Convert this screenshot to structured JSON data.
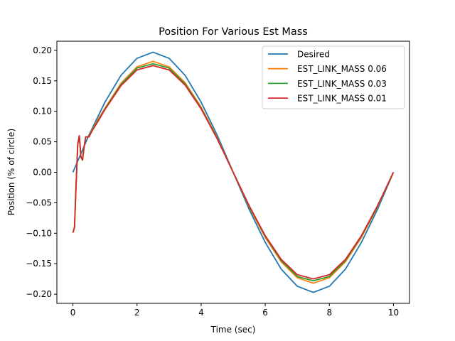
{
  "chart_data": {
    "type": "line",
    "title": "Position For Various Est Mass",
    "xlabel": "Time (sec)",
    "ylabel": "Position (% of circle)",
    "xlim": [
      -0.5,
      10.5
    ],
    "ylim": [
      -0.215,
      0.215
    ],
    "xticks": [
      0,
      2,
      4,
      6,
      8,
      10
    ],
    "xtick_labels": [
      "0",
      "2",
      "4",
      "6",
      "8",
      "10"
    ],
    "yticks": [
      -0.2,
      -0.15,
      -0.1,
      -0.05,
      0.0,
      0.05,
      0.1,
      0.15,
      0.2
    ],
    "ytick_labels": [
      "−0.20",
      "−0.15",
      "−0.10",
      "−0.05",
      "0.00",
      "0.05",
      "0.10",
      "0.15",
      "0.20"
    ],
    "grid": false,
    "legend_position": "upper right",
    "series": [
      {
        "name": "Desired",
        "color": "#1f77b4",
        "x": [
          0,
          0.5,
          1,
          1.5,
          2,
          2.5,
          3,
          3.5,
          4,
          4.5,
          5,
          5.5,
          6,
          6.5,
          7,
          7.5,
          8,
          8.5,
          9,
          9.5,
          10
        ],
        "y": [
          0,
          0.061,
          0.115,
          0.159,
          0.187,
          0.197,
          0.187,
          0.159,
          0.115,
          0.061,
          0,
          -0.061,
          -0.115,
          -0.159,
          -0.187,
          -0.197,
          -0.187,
          -0.159,
          -0.115,
          -0.061,
          0
        ]
      },
      {
        "name": "EST_LINK_MASS 0.06",
        "color": "#ff7f0e",
        "x": [
          0,
          0.05,
          0.1,
          0.15,
          0.2,
          0.25,
          0.3,
          0.35,
          0.4,
          0.45,
          0.5,
          0.6,
          0.8,
          1,
          1.5,
          2,
          2.5,
          3,
          3.5,
          4,
          4.5,
          5,
          5.5,
          6,
          6.5,
          7,
          7.5,
          8,
          8.5,
          9,
          9.5,
          10
        ],
        "y": [
          -0.099,
          -0.09,
          -0.02,
          0.045,
          0.06,
          0.025,
          0.02,
          0.042,
          0.058,
          0.058,
          0.058,
          0.07,
          0.088,
          0.105,
          0.146,
          0.173,
          0.182,
          0.173,
          0.147,
          0.107,
          0.057,
          0,
          -0.057,
          -0.107,
          -0.147,
          -0.173,
          -0.182,
          -0.173,
          -0.147,
          -0.107,
          -0.057,
          0
        ]
      },
      {
        "name": "EST_LINK_MASS 0.03",
        "color": "#2ca02c",
        "x": [
          0,
          0.05,
          0.1,
          0.15,
          0.2,
          0.25,
          0.3,
          0.35,
          0.4,
          0.45,
          0.5,
          0.6,
          0.8,
          1,
          1.5,
          2,
          2.5,
          3,
          3.5,
          4,
          4.5,
          5,
          5.5,
          6,
          6.5,
          7,
          7.5,
          8,
          8.5,
          9,
          9.5,
          10
        ],
        "y": [
          -0.099,
          -0.09,
          -0.02,
          0.045,
          0.06,
          0.025,
          0.02,
          0.042,
          0.058,
          0.058,
          0.058,
          0.069,
          0.086,
          0.104,
          0.144,
          0.171,
          0.178,
          0.171,
          0.145,
          0.105,
          0.056,
          0,
          -0.056,
          -0.105,
          -0.145,
          -0.171,
          -0.178,
          -0.171,
          -0.145,
          -0.105,
          -0.056,
          0
        ]
      },
      {
        "name": "EST_LINK_MASS 0.01",
        "color": "#d62728",
        "x": [
          0,
          0.05,
          0.1,
          0.15,
          0.2,
          0.25,
          0.3,
          0.35,
          0.4,
          0.45,
          0.5,
          0.6,
          0.8,
          1,
          1.5,
          2,
          2.5,
          3,
          3.5,
          4,
          4.5,
          5,
          5.5,
          6,
          6.5,
          7,
          7.5,
          8,
          8.5,
          9,
          9.5,
          10
        ],
        "y": [
          -0.099,
          -0.09,
          -0.02,
          0.045,
          0.06,
          0.025,
          0.02,
          0.042,
          0.058,
          0.058,
          0.058,
          0.068,
          0.085,
          0.103,
          0.142,
          0.168,
          0.175,
          0.168,
          0.143,
          0.104,
          0.055,
          0,
          -0.055,
          -0.104,
          -0.143,
          -0.168,
          -0.175,
          -0.168,
          -0.143,
          -0.104,
          -0.055,
          0
        ]
      }
    ]
  }
}
